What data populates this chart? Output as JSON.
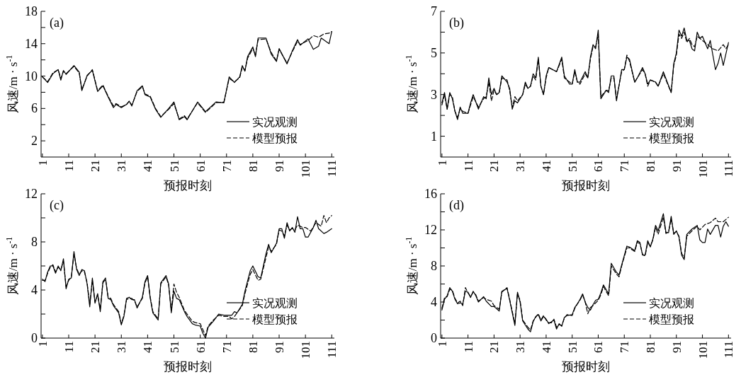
{
  "chart_data": [
    {
      "type": "line",
      "title": "(a)",
      "xlabel": "预报时刻",
      "ylabel": "风速/m · s$^{-1}$",
      "legend": "bottom right",
      "xlim": [
        0.5,
        112
      ],
      "xticks": [
        1,
        11,
        21,
        31,
        41,
        51,
        61,
        71,
        81,
        91,
        101,
        111
      ],
      "ylim": [
        0,
        18
      ],
      "yticks": [
        2,
        {
          "value": 4,
          "label": null
        },
        6,
        {
          "value": 8,
          "label": null
        },
        10,
        {
          "value": 12,
          "label": null
        },
        14,
        {
          "value": 16,
          "label": null
        },
        18
      ],
      "series": [
        {
          "name": "实况观测",
          "color": "#000000",
          "line_style": "solid",
          "x": [
            1,
            3,
            5,
            7,
            8,
            9,
            10,
            13,
            15,
            16,
            18,
            20,
            22,
            24,
            26,
            28,
            29,
            31,
            33,
            34,
            35,
            37,
            39,
            40,
            42,
            44,
            46,
            49,
            51,
            53,
            55,
            56,
            60,
            63,
            67,
            70,
            72,
            74,
            76,
            77,
            78,
            79,
            81,
            82,
            83,
            86,
            88,
            90,
            91,
            94,
            96,
            98,
            99,
            102,
            104,
            106,
            107,
            110,
            111
          ],
          "values": [
            9.9,
            9.2,
            10.3,
            10.8,
            9.5,
            10.7,
            10.2,
            11.3,
            10.5,
            8.2,
            10.1,
            10.7,
            8.1,
            8.8,
            7.4,
            6.1,
            6.5,
            6.1,
            6.5,
            6.9,
            6.3,
            8.2,
            8.8,
            7.7,
            7.4,
            5.9,
            4.9,
            6.0,
            6.8,
            4.6,
            5.0,
            4.6,
            6.8,
            5.6,
            6.8,
            6.7,
            9.9,
            9.2,
            9.9,
            11.3,
            10.6,
            12.4,
            13.6,
            12.4,
            14.7,
            14.7,
            12.7,
            11.8,
            13.4,
            11.5,
            13.1,
            14.5,
            13.8,
            14.6,
            13.3,
            13.7,
            14.7,
            14.0,
            15.5
          ]
        },
        {
          "name": "模型预报",
          "color": "#000000",
          "line_style": "dashed",
          "x": [
            1,
            3,
            5,
            7,
            8,
            9,
            10,
            13,
            15,
            16,
            18,
            20,
            22,
            24,
            26,
            28,
            29,
            31,
            33,
            34,
            35,
            37,
            39,
            40,
            42,
            44,
            46,
            49,
            51,
            53,
            55,
            56,
            60,
            63,
            67,
            70,
            72,
            74,
            76,
            77,
            78,
            79,
            81,
            82,
            83,
            86,
            88,
            90,
            91,
            94,
            96,
            98,
            99,
            102,
            104,
            106,
            108,
            110,
            111
          ],
          "values": [
            9.9,
            9.3,
            10.4,
            10.8,
            9.7,
            10.6,
            10.3,
            11.2,
            10.4,
            8.3,
            10.0,
            10.8,
            8.2,
            8.9,
            7.5,
            6.3,
            6.6,
            6.2,
            6.5,
            6.9,
            6.4,
            8.1,
            8.7,
            7.8,
            7.5,
            6.0,
            5.0,
            5.9,
            6.6,
            4.7,
            5.1,
            4.7,
            6.7,
            5.5,
            6.7,
            6.8,
            9.7,
            9.3,
            9.8,
            11.1,
            10.7,
            12.2,
            13.4,
            12.6,
            14.5,
            14.6,
            12.9,
            11.9,
            13.3,
            11.6,
            13.0,
            14.3,
            13.9,
            14.4,
            15.0,
            14.8,
            15.2,
            15.3,
            15.5
          ]
        }
      ]
    },
    {
      "type": "line",
      "title": "(b)",
      "xlabel": "预报时刻",
      "ylabel": "风速/m · s$^{-1}$",
      "legend": "bottom right",
      "xlim": [
        0.5,
        112
      ],
      "xticks": [
        1,
        11,
        21,
        31,
        41,
        51,
        61,
        71,
        81,
        91,
        101,
        111
      ],
      "ylim": [
        0,
        7
      ],
      "yticks": [
        1,
        {
          "value": 2,
          "label": null
        },
        3,
        {
          "value": 4,
          "label": null
        },
        5,
        {
          "value": 6,
          "label": null
        },
        7
      ],
      "series": [
        {
          "name": "实况观测",
          "color": "#000000",
          "line_style": "solid",
          "x": [
            1,
            2,
            3,
            4,
            5,
            6,
            7,
            8,
            9,
            11,
            12,
            13,
            15,
            17,
            18,
            19,
            20,
            21,
            22,
            23,
            24,
            26,
            27,
            28,
            29,
            30,
            32,
            33,
            34,
            35,
            36,
            37,
            38,
            39,
            40,
            41,
            42,
            45,
            47,
            48,
            50,
            51,
            52,
            53,
            54,
            56,
            57,
            58,
            59,
            60,
            61,
            62,
            64,
            65,
            66,
            67,
            68,
            70,
            71,
            72,
            73,
            75,
            76,
            78,
            79,
            80,
            81,
            83,
            84,
            86,
            89,
            90,
            91,
            92,
            93,
            94,
            95,
            96,
            97,
            98,
            99,
            100,
            101,
            103,
            104,
            106,
            107,
            108,
            109,
            111
          ],
          "values": [
            2.6,
            3.1,
            2.3,
            3.1,
            2.8,
            2.2,
            1.8,
            2.4,
            2.1,
            2.1,
            2.6,
            3.0,
            2.3,
            2.9,
            2.8,
            3.8,
            3.0,
            3.3,
            3.0,
            3.1,
            3.9,
            3.6,
            3.3,
            2.3,
            2.7,
            2.6,
            3.0,
            3.6,
            3.3,
            3.4,
            4.0,
            3.8,
            4.8,
            3.4,
            3.0,
            3.9,
            4.3,
            4.1,
            4.8,
            3.9,
            3.5,
            3.5,
            4.2,
            3.6,
            3.6,
            4.1,
            3.8,
            4.8,
            5.4,
            5.2,
            6.1,
            2.8,
            3.2,
            3.1,
            3.9,
            3.9,
            2.7,
            4.2,
            4.2,
            4.8,
            4.7,
            3.6,
            3.8,
            4.3,
            4.0,
            3.5,
            3.7,
            3.6,
            3.4,
            4.1,
            3.1,
            4.5,
            5.0,
            6.1,
            5.8,
            6.2,
            5.6,
            5.6,
            5.2,
            5.1,
            6.0,
            5.7,
            5.8,
            5.2,
            5.6,
            4.2,
            4.5,
            5.0,
            4.4,
            5.5
          ]
        },
        {
          "name": "模型预报",
          "color": "#000000",
          "line_style": "dashed",
          "x": [
            1,
            2,
            3,
            4,
            5,
            6,
            7,
            8,
            9,
            11,
            12,
            13,
            15,
            17,
            18,
            19,
            20,
            21,
            22,
            23,
            24,
            26,
            27,
            28,
            29,
            30,
            32,
            33,
            34,
            35,
            36,
            37,
            38,
            39,
            40,
            41,
            42,
            45,
            47,
            48,
            50,
            51,
            52,
            53,
            54,
            56,
            57,
            58,
            59,
            60,
            61,
            62,
            64,
            65,
            66,
            67,
            68,
            70,
            71,
            72,
            73,
            75,
            76,
            78,
            79,
            80,
            81,
            83,
            84,
            86,
            89,
            90,
            91,
            92,
            93,
            94,
            95,
            96,
            97,
            98,
            99,
            100,
            101,
            103,
            105,
            107,
            109,
            110,
            111
          ],
          "values": [
            2.5,
            3.0,
            2.3,
            3.0,
            2.9,
            2.2,
            1.9,
            2.3,
            2.2,
            2.1,
            2.5,
            2.9,
            2.4,
            2.8,
            2.9,
            3.6,
            2.7,
            3.2,
            3.0,
            3.1,
            3.8,
            3.7,
            3.2,
            2.4,
            2.9,
            2.7,
            3.0,
            3.5,
            3.3,
            3.4,
            3.9,
            3.7,
            4.7,
            3.4,
            3.0,
            3.8,
            4.3,
            4.1,
            4.7,
            3.8,
            3.6,
            3.5,
            4.1,
            3.6,
            3.5,
            4.0,
            3.8,
            4.7,
            5.3,
            5.3,
            5.9,
            2.9,
            3.2,
            3.2,
            3.8,
            3.8,
            2.8,
            4.1,
            4.2,
            4.9,
            4.6,
            3.6,
            3.8,
            4.2,
            4.0,
            3.4,
            3.7,
            3.6,
            3.4,
            4.0,
            3.1,
            4.4,
            4.9,
            5.9,
            5.7,
            6.0,
            5.5,
            5.7,
            5.4,
            5.3,
            5.8,
            5.7,
            5.6,
            5.4,
            5.2,
            5.1,
            5.4,
            5.2,
            5.4
          ]
        }
      ]
    },
    {
      "type": "line",
      "title": "(c)",
      "xlabel": "预报时刻",
      "ylabel": "风速/m · s$^{-1}$",
      "legend": "bottom right",
      "xlim": [
        0.5,
        112
      ],
      "xticks": [
        1,
        11,
        21,
        31,
        41,
        51,
        61,
        71,
        81,
        91,
        101,
        111
      ],
      "ylim": [
        0,
        12
      ],
      "yticks": [
        0,
        {
          "value": 2,
          "label": null
        },
        4,
        {
          "value": 6,
          "label": null
        },
        8,
        {
          "value": 10,
          "label": null
        },
        12
      ],
      "series": [
        {
          "name": "实况观测",
          "color": "#000000",
          "line_style": "solid",
          "x": [
            1,
            2,
            3,
            4,
            5,
            6,
            7,
            8,
            9,
            10,
            11,
            12,
            13,
            14,
            15,
            16,
            17,
            18,
            19,
            20,
            21,
            22,
            23,
            24,
            25,
            26,
            27,
            28,
            30,
            31,
            32,
            33,
            34,
            35,
            36,
            37,
            39,
            40,
            41,
            42,
            43,
            45,
            46,
            48,
            49,
            50,
            51,
            52,
            53,
            55,
            56,
            58,
            59,
            61,
            62,
            63,
            64,
            66,
            68,
            70,
            72,
            73,
            74,
            75,
            77,
            78,
            80,
            81,
            83,
            84,
            86,
            87,
            88,
            90,
            91,
            92,
            93,
            94,
            95,
            96,
            97,
            98,
            99,
            100,
            101,
            102,
            104,
            105,
            106,
            108,
            109,
            111
          ],
          "values": [
            4.9,
            4.7,
            5.5,
            6.0,
            6.0,
            5.4,
            6.0,
            5.6,
            6.6,
            4.1,
            4.9,
            5.0,
            7.2,
            5.7,
            5.2,
            5.7,
            5.6,
            4.5,
            2.6,
            5.0,
            2.9,
            3.7,
            2.2,
            4.7,
            5.0,
            3.3,
            3.2,
            2.7,
            2.1,
            1.1,
            1.8,
            3.3,
            3.4,
            3.2,
            3.2,
            2.5,
            3.4,
            4.7,
            5.2,
            3.3,
            2.1,
            1.5,
            4.6,
            5.2,
            4.5,
            2.1,
            3.9,
            3.3,
            3.2,
            2.2,
            1.8,
            1.2,
            1.1,
            1.0,
            0.4,
            0.0,
            0.9,
            1.4,
            2.0,
            1.9,
            1.9,
            1.9,
            2.2,
            2.1,
            2.8,
            3.9,
            5.6,
            6.0,
            5.1,
            5.0,
            7.0,
            7.8,
            7.1,
            7.9,
            9.1,
            9.1,
            8.3,
            9.6,
            8.9,
            9.2,
            8.8,
            10.1,
            9.1,
            9.1,
            8.4,
            8.4,
            9.2,
            9.8,
            9.1,
            8.7,
            8.8,
            9.1
          ]
        },
        {
          "name": "模型预报",
          "color": "#000000",
          "line_style": "dashed",
          "x": [
            1,
            2,
            3,
            4,
            5,
            6,
            7,
            8,
            9,
            10,
            11,
            12,
            13,
            14,
            15,
            16,
            17,
            18,
            19,
            20,
            21,
            22,
            23,
            24,
            25,
            26,
            27,
            28,
            30,
            31,
            32,
            33,
            34,
            35,
            36,
            37,
            39,
            40,
            41,
            42,
            43,
            45,
            46,
            48,
            49,
            50,
            51,
            52,
            53,
            55,
            56,
            58,
            59,
            61,
            62,
            63,
            64,
            66,
            68,
            70,
            72,
            73,
            74,
            75,
            77,
            78,
            80,
            81,
            83,
            84,
            86,
            87,
            88,
            90,
            91,
            92,
            93,
            94,
            95,
            96,
            97,
            98,
            99,
            100,
            101,
            103,
            105,
            107,
            108,
            109,
            110,
            111
          ],
          "values": [
            4.8,
            4.8,
            5.4,
            5.9,
            6.1,
            5.5,
            5.9,
            5.7,
            6.4,
            4.3,
            4.8,
            5.1,
            7.0,
            5.8,
            5.3,
            5.6,
            5.5,
            4.6,
            2.8,
            4.8,
            3.0,
            3.6,
            2.4,
            4.6,
            4.9,
            3.4,
            3.3,
            2.8,
            2.2,
            1.2,
            1.9,
            3.2,
            3.3,
            3.3,
            3.1,
            2.6,
            3.3,
            4.6,
            5.1,
            3.4,
            2.2,
            1.6,
            4.5,
            5.1,
            4.4,
            2.3,
            4.5,
            3.8,
            3.4,
            2.3,
            2.0,
            1.4,
            1.3,
            1.2,
            0.7,
            0.2,
            1.0,
            1.5,
            1.9,
            1.8,
            1.8,
            1.6,
            1.8,
            2.1,
            2.7,
            3.7,
            5.3,
            5.7,
            4.8,
            4.9,
            6.7,
            7.6,
            7.2,
            7.8,
            9.0,
            8.9,
            8.5,
            9.4,
            9.0,
            9.1,
            9.0,
            9.4,
            9.3,
            9.2,
            9.2,
            8.9,
            9.6,
            9.3,
            10.2,
            9.6,
            10.0,
            10.2
          ]
        }
      ]
    },
    {
      "type": "line",
      "title": "(d)",
      "xlabel": "预报时刻",
      "ylabel": "风速/m · s$^{-1}$",
      "legend": "bottom right",
      "xlim": [
        0.5,
        112
      ],
      "xticks": [
        1,
        11,
        21,
        31,
        41,
        51,
        61,
        71,
        81,
        91,
        101,
        111
      ],
      "ylim": [
        0,
        16
      ],
      "yticks": [
        0,
        {
          "value": 2,
          "label": null
        },
        4,
        {
          "value": 6,
          "label": null
        },
        8,
        {
          "value": 10,
          "label": null
        },
        12,
        {
          "value": 14,
          "label": null
        },
        16
      ],
      "series": [
        {
          "name": "实况观测",
          "color": "#000000",
          "line_style": "solid",
          "x": [
            1,
            2,
            3,
            4,
            5,
            6,
            7,
            8,
            9,
            10,
            11,
            12,
            13,
            14,
            15,
            17,
            18,
            20,
            21,
            23,
            24,
            26,
            27,
            29,
            30,
            31,
            32,
            34,
            35,
            36,
            37,
            38,
            39,
            40,
            41,
            42,
            43,
            44,
            45,
            46,
            47,
            48,
            49,
            51,
            52,
            53,
            54,
            55,
            56,
            57,
            58,
            59,
            60,
            61,
            62,
            63,
            65,
            66,
            68,
            69,
            70,
            72,
            73,
            75,
            76,
            77,
            78,
            79,
            80,
            81,
            82,
            83,
            84,
            86,
            87,
            88,
            89,
            90,
            91,
            92,
            93,
            94,
            95,
            97,
            99,
            100,
            101,
            102,
            103,
            104,
            106,
            107,
            108,
            109,
            110,
            111
          ],
          "values": [
            3.1,
            4.3,
            4.7,
            5.6,
            5.2,
            4.3,
            3.8,
            3.9,
            3.8,
            5.2,
            5.1,
            4.5,
            5.2,
            4.7,
            4.0,
            4.6,
            4.1,
            3.5,
            3.5,
            3.0,
            5.2,
            5.5,
            4.2,
            1.4,
            5.1,
            4.0,
            1.9,
            1.0,
            0.7,
            1.8,
            2.4,
            2.6,
            1.9,
            2.4,
            2.1,
            1.6,
            1.8,
            2.0,
            1.0,
            1.6,
            1.3,
            2.3,
            2.5,
            2.6,
            3.4,
            3.8,
            4.3,
            4.9,
            4.0,
            3.4,
            3.1,
            3.7,
            4.2,
            4.3,
            5.0,
            5.9,
            4.9,
            8.3,
            7.3,
            7.0,
            8.1,
            10.2,
            10.1,
            9.7,
            10.8,
            10.6,
            9.2,
            9.2,
            10.8,
            10.1,
            11.0,
            12.5,
            11.9,
            13.8,
            11.7,
            11.7,
            13.5,
            11.5,
            11.9,
            11.2,
            9.2,
            8.7,
            11.5,
            12.1,
            12.5,
            10.9,
            10.6,
            10.6,
            12.1,
            11.5,
            12.5,
            12.5,
            11.2,
            12.4,
            12.9,
            12.4
          ]
        },
        {
          "name": "模型预报",
          "color": "#000000",
          "line_style": "dashed",
          "x": [
            1,
            2,
            3,
            4,
            5,
            6,
            7,
            8,
            9,
            10,
            11,
            12,
            13,
            14,
            15,
            17,
            18,
            20,
            21,
            23,
            24,
            26,
            27,
            29,
            30,
            31,
            32,
            34,
            35,
            36,
            37,
            38,
            39,
            40,
            41,
            42,
            43,
            44,
            45,
            46,
            47,
            48,
            49,
            51,
            52,
            53,
            54,
            55,
            56,
            57,
            58,
            59,
            60,
            61,
            62,
            63,
            65,
            66,
            68,
            69,
            70,
            72,
            73,
            75,
            76,
            77,
            78,
            79,
            80,
            81,
            82,
            83,
            84,
            86,
            87,
            88,
            89,
            90,
            91,
            92,
            93,
            94,
            95,
            97,
            99,
            100,
            102,
            104,
            106,
            107,
            109,
            111
          ],
          "values": [
            3.3,
            4.5,
            4.6,
            5.4,
            5.3,
            4.4,
            3.9,
            4.1,
            3.6,
            5.6,
            5.0,
            4.6,
            5.1,
            4.8,
            4.1,
            4.5,
            4.3,
            4.1,
            3.6,
            3.2,
            5.1,
            5.6,
            4.3,
            1.6,
            4.9,
            4.2,
            2.0,
            1.2,
            0.9,
            1.9,
            2.3,
            2.7,
            2.0,
            2.5,
            2.0,
            1.7,
            1.7,
            2.1,
            1.2,
            1.5,
            1.4,
            2.2,
            2.6,
            2.5,
            3.3,
            3.8,
            4.2,
            4.8,
            4.0,
            2.7,
            3.4,
            3.6,
            3.9,
            4.2,
            4.8,
            5.7,
            4.7,
            8.0,
            7.1,
            6.8,
            8.0,
            10.0,
            10.0,
            9.6,
            10.6,
            10.5,
            9.3,
            9.1,
            10.6,
            10.2,
            10.9,
            12.3,
            11.5,
            13.4,
            11.6,
            11.8,
            13.2,
            11.6,
            11.8,
            11.3,
            9.4,
            8.9,
            11.3,
            11.9,
            12.4,
            12.0,
            12.6,
            12.8,
            13.3,
            12.9,
            12.9,
            13.4
          ]
        }
      ]
    }
  ]
}
